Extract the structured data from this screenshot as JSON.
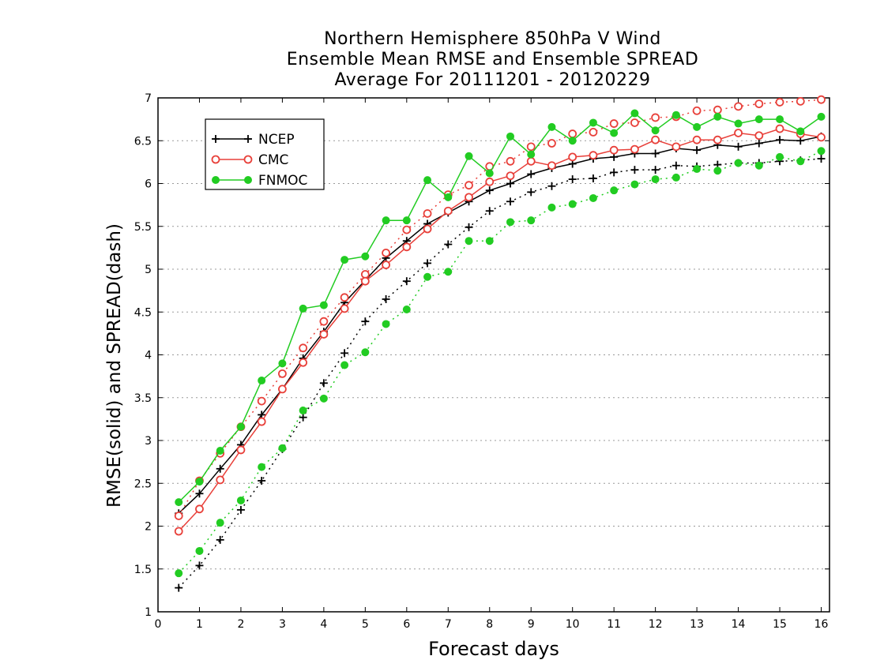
{
  "chart_data": {
    "type": "line",
    "title_lines": [
      "Northern Hemisphere 850hPa V Wind",
      "Ensemble Mean RMSE and Ensemble SPREAD",
      "Average For 20111201 - 20120229"
    ],
    "xlabel": "Forecast days",
    "ylabel": "RMSE(solid) and SPREAD(dash)",
    "xlim": [
      0,
      16.2
    ],
    "ylim": [
      1,
      7
    ],
    "xticks": [
      "0",
      "1",
      "2",
      "3",
      "4",
      "5",
      "6",
      "7",
      "8",
      "9",
      "10",
      "11",
      "12",
      "13",
      "14",
      "15",
      "16"
    ],
    "yticks": [
      "1",
      "1.5",
      "2",
      "2.5",
      "3",
      "3.5",
      "4",
      "4.5",
      "5",
      "5.5",
      "6",
      "6.5",
      "7"
    ],
    "grid": "dotted horizontal",
    "legend_position": "top-left",
    "x": [
      0.5,
      1,
      1.5,
      2,
      2.5,
      3,
      3.5,
      4,
      4.5,
      5,
      5.5,
      6,
      6.5,
      7,
      7.5,
      8,
      8.5,
      9,
      9.5,
      10,
      10.5,
      11,
      11.5,
      12,
      12.5,
      13,
      13.5,
      14,
      14.5,
      15,
      15.5,
      16
    ],
    "series": [
      {
        "name": "NCEP",
        "color": "#000000",
        "marker": "plus",
        "rmse": [
          2.15,
          2.38,
          2.67,
          2.95,
          3.3,
          3.6,
          3.96,
          4.27,
          4.61,
          4.87,
          5.13,
          5.33,
          5.53,
          5.66,
          5.79,
          5.92,
          6.0,
          6.11,
          6.18,
          6.23,
          6.29,
          6.31,
          6.35,
          6.35,
          6.41,
          6.39,
          6.45,
          6.43,
          6.47,
          6.51,
          6.5,
          6.55
        ],
        "spread": [
          1.28,
          1.54,
          1.84,
          2.19,
          2.53,
          2.9,
          3.27,
          3.67,
          4.02,
          4.39,
          4.65,
          4.86,
          5.07,
          5.29,
          5.49,
          5.68,
          5.79,
          5.9,
          5.97,
          6.05,
          6.06,
          6.13,
          6.16,
          6.16,
          6.21,
          6.2,
          6.22,
          6.24,
          6.24,
          6.26,
          6.27,
          6.29
        ]
      },
      {
        "name": "CMC",
        "color": "#e8403a",
        "marker": "open-circle",
        "rmse": [
          1.94,
          2.2,
          2.54,
          2.89,
          3.22,
          3.6,
          3.91,
          4.24,
          4.54,
          4.86,
          5.05,
          5.26,
          5.47,
          5.68,
          5.84,
          6.02,
          6.09,
          6.26,
          6.21,
          6.31,
          6.33,
          6.39,
          6.4,
          6.51,
          6.43,
          6.51,
          6.51,
          6.59,
          6.56,
          6.64,
          6.58,
          6.54
        ],
        "spread": [
          2.12,
          2.53,
          2.85,
          3.16,
          3.46,
          3.78,
          4.08,
          4.39,
          4.67,
          4.94,
          5.19,
          5.46,
          5.65,
          5.87,
          5.98,
          6.2,
          6.26,
          6.43,
          6.47,
          6.58,
          6.6,
          6.7,
          6.71,
          6.77,
          6.78,
          6.85,
          6.86,
          6.9,
          6.93,
          6.95,
          6.96,
          6.98
        ]
      },
      {
        "name": "FNMOC",
        "color": "#22cc22",
        "marker": "filled-circle",
        "rmse": [
          2.28,
          2.52,
          2.88,
          3.16,
          3.7,
          3.9,
          4.54,
          4.58,
          5.11,
          5.15,
          5.57,
          5.57,
          6.04,
          5.84,
          6.32,
          6.12,
          6.55,
          6.34,
          6.66,
          6.5,
          6.71,
          6.59,
          6.82,
          6.62,
          6.8,
          6.66,
          6.78,
          6.7,
          6.75,
          6.75,
          6.61,
          6.78
        ],
        "spread": [
          1.45,
          1.71,
          2.04,
          2.3,
          2.69,
          2.91,
          3.35,
          3.49,
          3.88,
          4.03,
          4.36,
          4.53,
          4.91,
          4.97,
          5.33,
          5.33,
          5.55,
          5.57,
          5.72,
          5.76,
          5.83,
          5.92,
          5.99,
          6.05,
          6.07,
          6.17,
          6.15,
          6.24,
          6.21,
          6.31,
          6.26,
          6.38
        ]
      }
    ]
  }
}
